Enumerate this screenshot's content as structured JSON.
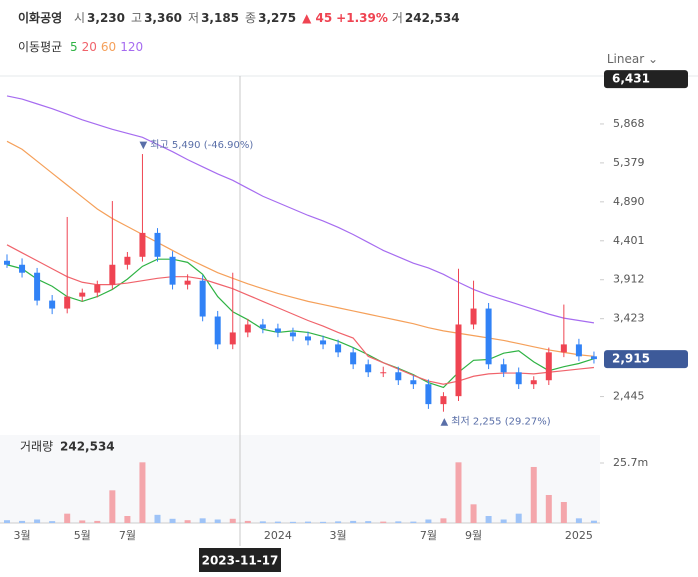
{
  "header": {
    "name": "이화공영",
    "stats": [
      {
        "label": "시",
        "value": "3,230"
      },
      {
        "label": "고",
        "value": "3,360"
      },
      {
        "label": "저",
        "value": "3,185"
      },
      {
        "label": "종",
        "value": "3,275"
      }
    ],
    "change": "▲ 45",
    "change_pct": "+1.39%",
    "volume_label": "거",
    "volume": "242,534"
  },
  "ma_title": "이동평균",
  "scale_mode": "Linear",
  "crosshair_date": "2023-11-17",
  "chart_data": {
    "type": "candlestick",
    "categories": [
      null,
      "3월",
      null,
      null,
      null,
      "5월",
      null,
      null,
      "7월",
      null,
      null,
      null,
      null,
      null,
      null,
      null,
      null,
      null,
      "2024",
      null,
      null,
      null,
      "3월",
      null,
      null,
      null,
      null,
      null,
      "7월",
      null,
      null,
      "9월",
      null,
      null,
      null,
      null,
      null,
      null,
      "2025",
      null
    ],
    "open": [
      4150,
      4100,
      4000,
      3650,
      3550,
      3700,
      3750,
      3850,
      4100,
      4200,
      4500,
      4200,
      3850,
      3900,
      3450,
      3100,
      3250,
      3350,
      3300,
      3250,
      3200,
      3150,
      3100,
      3000,
      2850,
      2750,
      2750,
      2650,
      2600,
      2350,
      2450,
      3350,
      3550,
      2850,
      2750,
      2600,
      2650,
      3000,
      3100,
      2950
    ],
    "high": [
      4230,
      4180,
      4060,
      3720,
      4700,
      3800,
      3900,
      4900,
      4260,
      5490,
      4560,
      4270,
      3980,
      3970,
      3520,
      4000,
      3420,
      3420,
      3360,
      3310,
      3260,
      3210,
      3160,
      3060,
      2910,
      2820,
      2820,
      2710,
      2660,
      2500,
      4050,
      3900,
      3620,
      2920,
      2810,
      2700,
      3060,
      3600,
      3170,
      3010
    ],
    "low": [
      4060,
      3940,
      3590,
      3480,
      3490,
      3640,
      3690,
      3790,
      4040,
      4140,
      4140,
      3790,
      3790,
      3390,
      3040,
      3040,
      3190,
      3240,
      3190,
      3140,
      3090,
      3040,
      2940,
      2790,
      2690,
      2690,
      2590,
      2540,
      2290,
      2255,
      2390,
      3290,
      2790,
      2690,
      2540,
      2540,
      2590,
      2940,
      2890,
      2860
    ],
    "close": [
      4100,
      4000,
      3650,
      3550,
      3700,
      3750,
      3850,
      4100,
      4200,
      4500,
      4200,
      3850,
      3900,
      3450,
      3100,
      3250,
      3350,
      3300,
      3250,
      3200,
      3150,
      3100,
      3000,
      2850,
      2750,
      2750,
      2650,
      2600,
      2350,
      2450,
      3350,
      3550,
      2850,
      2750,
      2600,
      2650,
      3000,
      3100,
      2950,
      2915
    ],
    "up_color": "#ef4452",
    "down_color": "#3182f6",
    "moving_averages": [
      {
        "name": "5",
        "color": "#2fb344",
        "values": [
          4100,
          4050,
          3920,
          3830,
          3700,
          3640,
          3700,
          3790,
          3920,
          4080,
          4170,
          4170,
          4130,
          3980,
          3700,
          3510,
          3410,
          3290,
          3250,
          3270,
          3250,
          3200,
          3140,
          3060,
          2970,
          2870,
          2800,
          2720,
          2620,
          2560,
          2750,
          2900,
          2910,
          2990,
          3020,
          2880,
          2770,
          2820,
          2860,
          2920
        ]
      },
      {
        "name": "20",
        "color": "#f0636b",
        "values": [
          4350,
          4250,
          4150,
          4050,
          3950,
          3880,
          3850,
          3850,
          3870,
          3900,
          3930,
          3950,
          3950,
          3920,
          3860,
          3800,
          3720,
          3640,
          3560,
          3480,
          3400,
          3330,
          3250,
          3180,
          2950,
          2870,
          2790,
          2710,
          2640,
          2600,
          2640,
          2700,
          2730,
          2740,
          2740,
          2730,
          2750,
          2770,
          2790,
          2810
        ]
      },
      {
        "name": "60",
        "color": "#f5a05a",
        "values": [
          5650,
          5550,
          5400,
          5250,
          5100,
          4950,
          4800,
          4680,
          4580,
          4480,
          4380,
          4280,
          4180,
          4090,
          4000,
          3930,
          3860,
          3800,
          3740,
          3690,
          3640,
          3600,
          3560,
          3520,
          3480,
          3440,
          3400,
          3360,
          3310,
          3270,
          3240,
          3210,
          3180,
          3150,
          3110,
          3070,
          3030,
          3000,
          2970,
          2950
        ]
      },
      {
        "name": "120",
        "color": "#a66cf0",
        "values": [
          6220,
          6180,
          6120,
          6060,
          5990,
          5920,
          5860,
          5800,
          5750,
          5700,
          5610,
          5520,
          5420,
          5330,
          5240,
          5160,
          5060,
          4960,
          4880,
          4800,
          4720,
          4650,
          4570,
          4480,
          4380,
          4280,
          4200,
          4120,
          4060,
          3980,
          3880,
          3790,
          3720,
          3660,
          3600,
          3540,
          3480,
          3430,
          3400,
          3370
        ]
      }
    ],
    "ylim": [
      2000,
      6470
    ],
    "yticks": [
      {
        "value": 2445,
        "label": "2,445"
      },
      {
        "value": 3423,
        "label": "3,423"
      },
      {
        "value": 3912,
        "label": "3,912"
      },
      {
        "value": 4401,
        "label": "4,401"
      },
      {
        "value": 4890,
        "label": "4,890"
      },
      {
        "value": 5379,
        "label": "5,379"
      },
      {
        "value": 5868,
        "label": "5,868"
      }
    ],
    "crosshair_price": {
      "value": 6431,
      "label": "6,431"
    },
    "last_price": {
      "value": 2915,
      "label": "2,915"
    },
    "annotations": [
      {
        "text": "▼ 최고 5,490 (-46.90%)",
        "index": 9,
        "value": 5490
      },
      {
        "text": "▲ 최저 2,255 (29.27%)",
        "index": 29,
        "value": 2255
      }
    ],
    "volume": {
      "title": "거래량",
      "total": "242,534",
      "values": [
        1200000,
        900000,
        1500000,
        800000,
        4000000,
        1100000,
        900000,
        14000000,
        3000000,
        26000000,
        3500000,
        1800000,
        1200000,
        2000000,
        1500000,
        1800000,
        900000,
        700000,
        600000,
        500000,
        600000,
        500000,
        700000,
        900000,
        800000,
        600000,
        700000,
        600000,
        1500000,
        2000000,
        26000000,
        8000000,
        3000000,
        1500000,
        4000000,
        24000000,
        12000000,
        9000000,
        2000000,
        1000000
      ],
      "ylim": [
        0,
        37700000
      ],
      "yticks": [
        {
          "value": 25700000,
          "label": "25.7m"
        }
      ]
    }
  }
}
